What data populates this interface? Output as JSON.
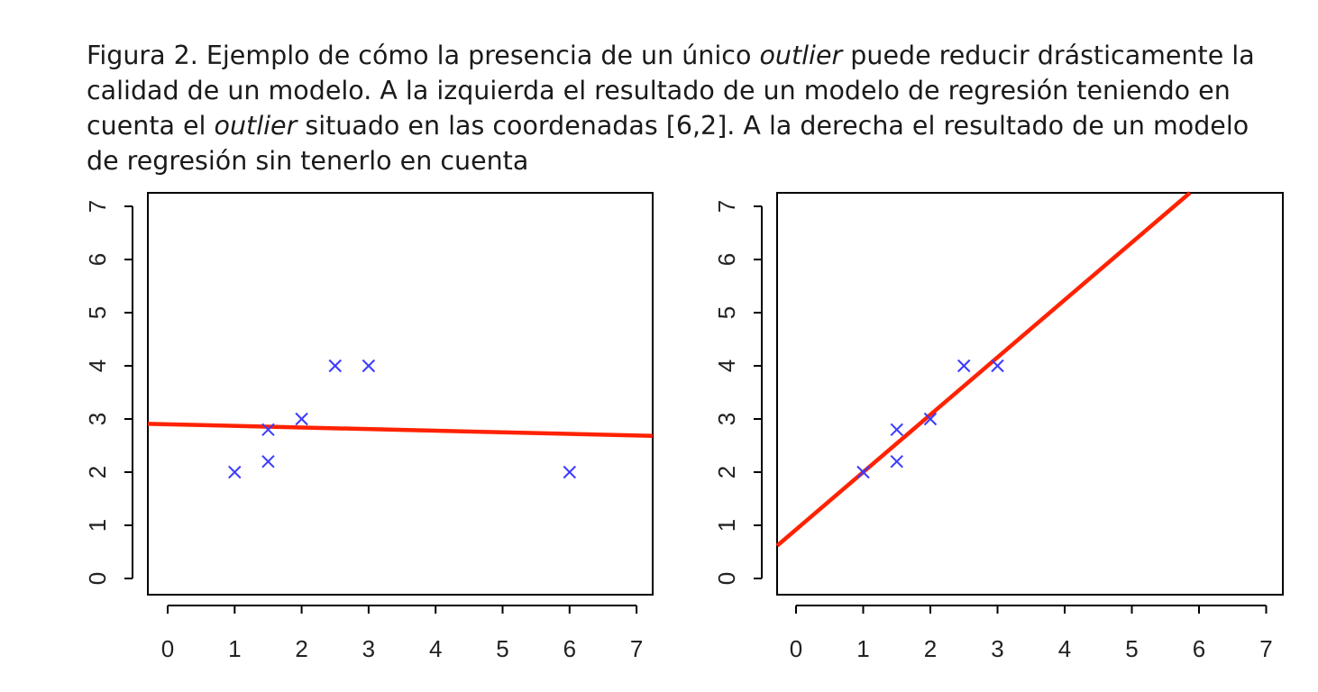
{
  "caption": {
    "p1": "Figura 2. Ejemplo de cómo la presencia de un único ",
    "i1": "outlier",
    "p2": " puede reducir drásticamente la calidad de un modelo. A la izquierda el resultado de un modelo de regresión teniendo en cuenta el ",
    "i2": "outlier",
    "p3": " situado en las coordenadas [6,2]. A la derecha el resultado de un modelo de regresión sin tenerlo en cuenta"
  },
  "colors": {
    "points": "#3b3bff",
    "line": "#ff2200",
    "axis": "#000000"
  },
  "chart_data": [
    {
      "type": "scatter",
      "title": "",
      "xlabel": "",
      "ylabel": "",
      "xlim": [
        0,
        7
      ],
      "ylim": [
        0,
        7
      ],
      "x_ticks": [
        "0",
        "1",
        "2",
        "3",
        "4",
        "5",
        "6",
        "7"
      ],
      "y_ticks": [
        "0",
        "1",
        "2",
        "3",
        "4",
        "5",
        "6",
        "7"
      ],
      "grid": false,
      "marker": "x",
      "points": [
        [
          1,
          2
        ],
        [
          1.5,
          2.2
        ],
        [
          1.5,
          2.8
        ],
        [
          2,
          3
        ],
        [
          2.5,
          4
        ],
        [
          3,
          4
        ],
        [
          6,
          2
        ]
      ],
      "regression_line": {
        "intercept": 2.9,
        "slope": -0.03
      }
    },
    {
      "type": "scatter",
      "title": "",
      "xlabel": "",
      "ylabel": "",
      "xlim": [
        0,
        7
      ],
      "ylim": [
        0,
        7
      ],
      "x_ticks": [
        "0",
        "1",
        "2",
        "3",
        "4",
        "5",
        "6",
        "7"
      ],
      "y_ticks": [
        "0",
        "1",
        "2",
        "3",
        "4",
        "5",
        "6",
        "7"
      ],
      "grid": false,
      "marker": "x",
      "points": [
        [
          1,
          2
        ],
        [
          1.5,
          2.2
        ],
        [
          1.5,
          2.8
        ],
        [
          2,
          3
        ],
        [
          2.5,
          4
        ],
        [
          3,
          4
        ]
      ],
      "regression_line": {
        "intercept": 0.92,
        "slope": 1.08
      }
    }
  ]
}
